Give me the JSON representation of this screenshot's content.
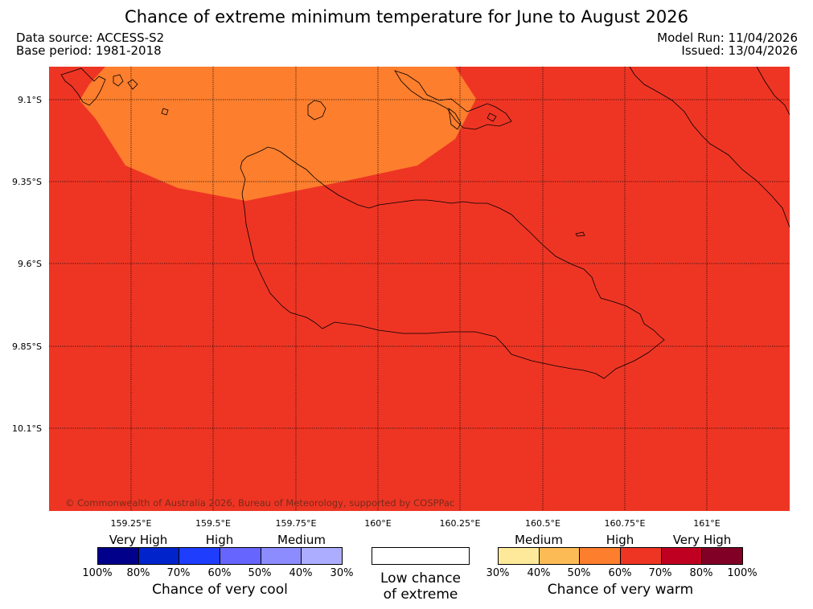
{
  "title": "Chance of extreme minimum temperature for June to August 2026",
  "header": {
    "data_source": "Data source: ACCESS-S2",
    "base_period": "Base period: 1981-2018",
    "model_run": "Model Run: 11/04/2026",
    "issued": "Issued: 13/04/2026"
  },
  "map": {
    "copyright": "© Commonwealth of Australia 2026, Bureau of Meteorology, supported by COSPPac",
    "lat_labels": [
      "9.1°S",
      "9.35°S",
      "9.6°S",
      "9.85°S",
      "10.1°S"
    ],
    "lon_labels": [
      "159.25°E",
      "159.5°E",
      "159.75°E",
      "160°E",
      "160.25°E",
      "160.5°E",
      "160.75°E",
      "161°E"
    ],
    "colors": {
      "background": "#ee3524",
      "region_medium": "#fd7e2d",
      "coastline": "#000000"
    }
  },
  "legend": {
    "cool": {
      "categories": [
        "Very High",
        "High",
        "Medium"
      ],
      "ticks": [
        "100%",
        "80%",
        "70%",
        "60%",
        "50%",
        "40%",
        "30%"
      ],
      "colors": [
        "#00008b",
        "#0023cc",
        "#1f3dfd",
        "#6666ff",
        "#8c8cff",
        "#adadff"
      ],
      "caption": "Chance of very cool"
    },
    "low": {
      "line1": "Low chance",
      "line2": "of extreme"
    },
    "warm": {
      "categories": [
        "Medium",
        "High",
        "Very High"
      ],
      "ticks": [
        "30%",
        "40%",
        "50%",
        "60%",
        "70%",
        "80%",
        "100%"
      ],
      "colors": [
        "#fee99a",
        "#fdbb56",
        "#fd7e2d",
        "#ee3524",
        "#c00021",
        "#800026"
      ],
      "caption": "Chance of very warm"
    }
  }
}
